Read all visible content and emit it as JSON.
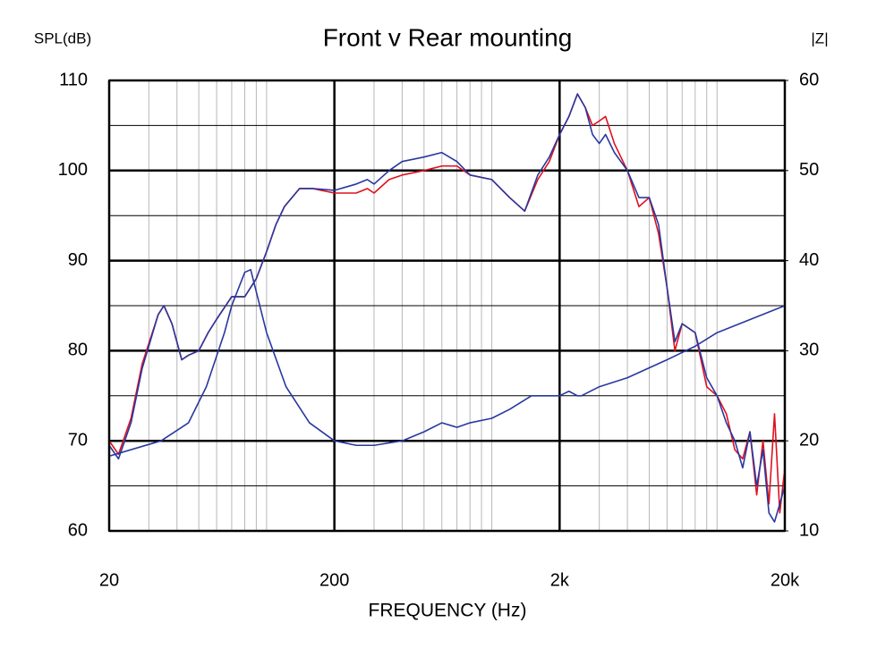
{
  "chart_data": {
    "type": "line",
    "title": "Front v Rear mounting",
    "y_label": "SPL(dB)",
    "y2_label": "|Z|",
    "x_label": "FREQUENCY (Hz)",
    "xscale": "log",
    "xlim": [
      20,
      20000
    ],
    "xticks": [
      20,
      200,
      {
        "value": 2000,
        "label": "2k"
      },
      {
        "value": 20000,
        "label": "20k"
      }
    ],
    "xminorticks": [
      30,
      40,
      50,
      60,
      70,
      80,
      90,
      100,
      300,
      400,
      500,
      600,
      700,
      800,
      900,
      1000,
      3000,
      4000,
      5000,
      6000,
      7000,
      8000,
      9000,
      10000
    ],
    "ylim": [
      60,
      110
    ],
    "yticks": [
      60,
      70,
      80,
      90,
      100,
      110
    ],
    "yminorticks": [
      65,
      75,
      85,
      95,
      105
    ],
    "y2lim": [
      10,
      60
    ],
    "y2ticks": [
      10,
      20,
      30,
      40,
      50,
      60
    ],
    "grid": true,
    "series": [
      {
        "color": "#e0101e",
        "x": [
          20,
          22,
          25,
          28,
          33,
          35,
          38,
          42,
          45,
          50,
          55,
          60,
          70,
          80,
          90,
          100,
          110,
          120,
          140,
          160,
          200,
          250,
          280,
          300,
          350,
          400,
          500,
          600,
          700,
          800,
          1000,
          1200,
          1400,
          1600,
          1800,
          2000,
          2200,
          2400,
          2600,
          2800,
          3000,
          3200,
          3500,
          4000,
          4500,
          5000,
          5500,
          6000,
          6500,
          7000,
          8000,
          9000,
          10000,
          11000,
          12000,
          13000,
          14000,
          15000,
          16000,
          17000,
          18000,
          19000,
          20000
        ],
        "values": [
          70,
          68.5,
          72.5,
          78.5,
          84,
          85,
          83,
          79,
          79.5,
          80,
          82,
          83.5,
          86,
          86,
          88,
          91,
          94,
          96,
          98,
          98,
          97.5,
          97.5,
          98,
          97.5,
          99,
          99.5,
          100,
          100.5,
          100.5,
          99.5,
          99,
          97,
          95.5,
          99,
          101,
          104,
          106,
          108.5,
          107,
          105,
          105.5,
          106,
          103,
          100,
          96,
          97,
          93,
          87,
          80,
          83,
          82,
          76,
          75,
          73,
          69,
          68,
          71,
          64,
          70,
          63,
          73,
          62,
          67
        ]
      },
      {
        "color": "#2838a0",
        "x": [
          20,
          22,
          25,
          28,
          33,
          35,
          38,
          42,
          45,
          50,
          55,
          60,
          70,
          80,
          90,
          100,
          110,
          120,
          140,
          160,
          200,
          250,
          280,
          300,
          350,
          400,
          500,
          600,
          700,
          800,
          1000,
          1200,
          1400,
          1600,
          1800,
          2000,
          2200,
          2400,
          2600,
          2800,
          3000,
          3200,
          3500,
          4000,
          4500,
          5000,
          5500,
          6000,
          6500,
          7000,
          8000,
          9000,
          10000,
          11000,
          12000,
          13000,
          14000,
          15000,
          16000,
          17000,
          18000,
          19000,
          20000
        ],
        "values": [
          69.5,
          68,
          72,
          78,
          84,
          85,
          83,
          79,
          79.5,
          80,
          82,
          83.5,
          86,
          86,
          88,
          91,
          94,
          96,
          98,
          98,
          97.8,
          98.5,
          99,
          98.5,
          100,
          101,
          101.5,
          102,
          101,
          99.5,
          99,
          97,
          95.5,
          99.5,
          101.5,
          104,
          106,
          108.5,
          107,
          104,
          103,
          104,
          102,
          100,
          97,
          97,
          94,
          87,
          81,
          83,
          82,
          77,
          75,
          72,
          70,
          67,
          71,
          65,
          69,
          62,
          61,
          63,
          65
        ]
      },
      {
        "color": "#2838a0",
        "axis": "y2",
        "x": [
          20,
          34,
          45,
          54,
          65,
          70,
          80,
          85,
          100,
          122,
          155,
          200,
          250,
          300,
          400,
          500,
          600,
          700,
          800,
          1000,
          1200,
          1500,
          1800,
          2000,
          2200,
          2400,
          2500,
          3000,
          4000,
          6000,
          8000,
          10000,
          20000
        ],
        "values": [
          18.3,
          20,
          22,
          26,
          32,
          35,
          38.7,
          39,
          32,
          26,
          22,
          20,
          19.5,
          19.5,
          20,
          21,
          22,
          21.5,
          22,
          22.5,
          23.5,
          25,
          25,
          25,
          25.5,
          25,
          25,
          26,
          27,
          29,
          30.5,
          32,
          35
        ]
      }
    ]
  }
}
